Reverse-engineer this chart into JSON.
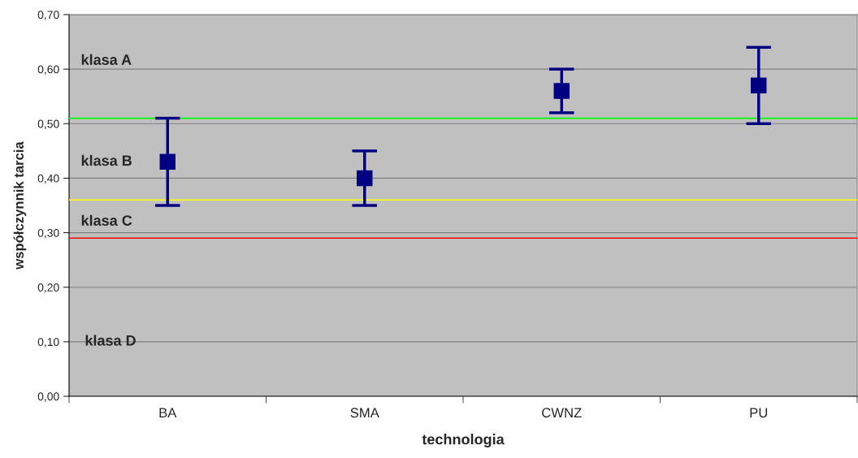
{
  "chart_data": {
    "type": "scatter",
    "xlabel": "technologia",
    "ylabel": "współczynnik tarcia",
    "categories": [
      "BA",
      "SMA",
      "CWNZ",
      "PU"
    ],
    "series": [
      {
        "color": "#000080",
        "values": [
          0.43,
          0.4,
          0.56,
          0.57
        ],
        "errors": [
          [
            0.35,
            0.51
          ],
          [
            0.35,
            0.45
          ],
          [
            0.52,
            0.6
          ],
          [
            0.5,
            0.64
          ]
        ]
      }
    ],
    "marker": "square",
    "ylim": [
      0,
      0.7
    ],
    "yticks": [
      {
        "value": 0,
        "label": "0,00"
      },
      {
        "value": 0.1,
        "label": "0,10"
      },
      {
        "value": 0.2,
        "label": "0,20"
      },
      {
        "value": 0.3,
        "label": "0,30"
      },
      {
        "value": 0.4,
        "label": "0,40"
      },
      {
        "value": 0.5,
        "label": "0,50"
      },
      {
        "value": 0.6,
        "label": "0,60"
      },
      {
        "value": 0.7,
        "label": "0,70"
      }
    ],
    "grid": "y",
    "ref_lines": [
      {
        "axis": "y",
        "value": 0.51,
        "color": "#00ff00"
      },
      {
        "axis": "y",
        "value": 0.36,
        "color": "#ffff00"
      },
      {
        "axis": "y",
        "value": 0.29,
        "color": "#ff0000"
      }
    ],
    "annotations": [
      "klasa A",
      "klasa B",
      "klasa C",
      "klasa D"
    ]
  }
}
